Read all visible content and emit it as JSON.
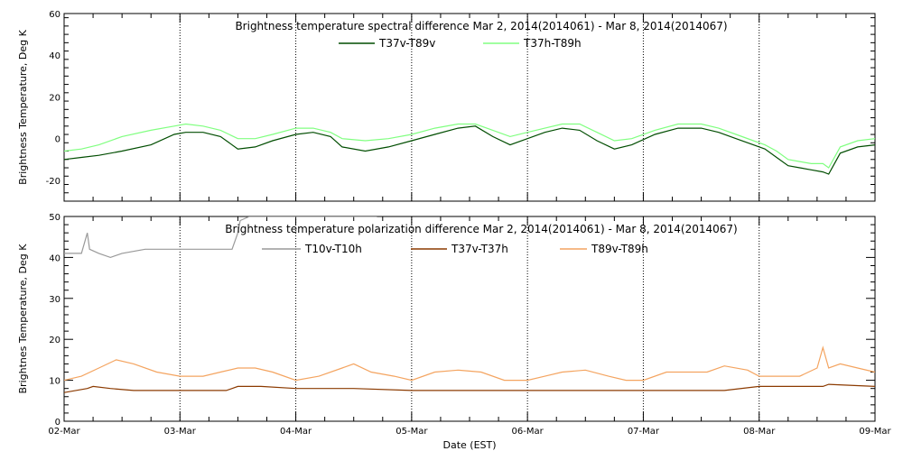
{
  "chart_data": [
    {
      "type": "line",
      "title": "Brightness temperature spectral difference     Mar  2, 2014(2014061) - Mar  8, 2014(2014067)",
      "ylabel": "Brightness Temperature, Deg K",
      "xlabel": "",
      "xlim": [
        0,
        7
      ],
      "ylim": [
        -30,
        60
      ],
      "yticks": [
        -20,
        0,
        20,
        40,
        60
      ],
      "yticklabels": [
        "-20",
        "0",
        "20",
        "40",
        "60"
      ],
      "xticks": [
        0,
        1,
        2,
        3,
        4,
        5,
        6,
        7
      ],
      "grid": "vertical dotted at day boundaries",
      "legend": "top-center",
      "series": [
        {
          "name": "T37v-T89v",
          "color": "#004d00",
          "x": [
            0,
            0.15,
            0.3,
            0.5,
            0.75,
            0.95,
            1.05,
            1.2,
            1.35,
            1.5,
            1.65,
            1.8,
            2.0,
            2.15,
            2.3,
            2.4,
            2.6,
            2.8,
            3.0,
            3.2,
            3.4,
            3.55,
            3.7,
            3.85,
            4.0,
            4.15,
            4.3,
            4.45,
            4.6,
            4.75,
            4.9,
            5.1,
            5.3,
            5.5,
            5.65,
            5.8,
            5.95,
            6.05,
            6.15,
            6.25,
            6.35,
            6.45,
            6.55,
            6.6,
            6.7,
            6.85,
            7.0
          ],
          "values": [
            -10,
            -9,
            -8,
            -6,
            -3,
            2,
            3,
            3,
            1,
            -5,
            -4,
            -1,
            2,
            3,
            1,
            -4,
            -6,
            -4,
            -1,
            2,
            5,
            6,
            1,
            -3,
            0,
            3,
            5,
            4,
            -1,
            -5,
            -3,
            2,
            5,
            5,
            3,
            0,
            -3,
            -5,
            -9,
            -13,
            -14,
            -15,
            -16,
            -17,
            -7,
            -4,
            -3
          ]
        },
        {
          "name": "T37h-T89h",
          "color": "#80ff80",
          "x": [
            0,
            0.15,
            0.3,
            0.5,
            0.75,
            0.95,
            1.05,
            1.2,
            1.35,
            1.5,
            1.65,
            1.8,
            2.0,
            2.15,
            2.3,
            2.4,
            2.6,
            2.8,
            3.0,
            3.2,
            3.4,
            3.55,
            3.7,
            3.85,
            4.0,
            4.15,
            4.3,
            4.45,
            4.6,
            4.75,
            4.9,
            5.1,
            5.3,
            5.5,
            5.65,
            5.8,
            5.95,
            6.05,
            6.15,
            6.25,
            6.35,
            6.45,
            6.55,
            6.6,
            6.7,
            6.85,
            7.0
          ],
          "values": [
            -6,
            -5,
            -3,
            1,
            4,
            6,
            7,
            6,
            4,
            0,
            0,
            2,
            5,
            5,
            3,
            0,
            -1,
            0,
            2,
            5,
            7,
            7,
            4,
            1,
            3,
            5,
            7,
            7,
            3,
            -1,
            0,
            4,
            7,
            7,
            5,
            2,
            -1,
            -3,
            -6,
            -10,
            -11,
            -12,
            -12,
            -14,
            -4,
            -1,
            0
          ]
        }
      ]
    },
    {
      "type": "line",
      "title": "Brightness temperature polarization difference     Mar  2, 2014(2014061) - Mar  8, 2014(2014067)",
      "ylabel": "Brightnes Temperature, Deg K",
      "xlabel": "Date (EST)",
      "xlim": [
        0,
        7
      ],
      "ylim": [
        0,
        50
      ],
      "yticks": [
        0,
        10,
        20,
        30,
        40,
        50
      ],
      "yticklabels": [
        "0",
        "10",
        "20",
        "30",
        "40",
        "50"
      ],
      "xticks": [
        0,
        1,
        2,
        3,
        4,
        5,
        6,
        7
      ],
      "xticklabels": [
        "02-Mar",
        "03-Mar",
        "04-Mar",
        "05-Mar",
        "06-Mar",
        "07-Mar",
        "08-Mar",
        "09-Mar"
      ],
      "grid": "vertical dotted at day boundaries",
      "legend": "top-center",
      "series": [
        {
          "name": "T10v-T10h",
          "color": "#999999",
          "x": [
            0,
            0.15,
            0.2,
            0.22,
            0.3,
            0.4,
            0.5,
            0.7,
            0.9,
            1.1,
            1.3,
            1.45,
            1.5,
            1.52,
            1.6,
            1.8,
            2.0,
            2.2,
            2.4,
            2.6,
            2.7
          ],
          "values": [
            41,
            41,
            46,
            42,
            41,
            40,
            41,
            42,
            42,
            42,
            42,
            42,
            46,
            49,
            50,
            50,
            50,
            50,
            50,
            50,
            50
          ]
        },
        {
          "name": "T37v-T37h",
          "color": "#8b3a00",
          "x": [
            0,
            0.2,
            0.25,
            0.4,
            0.6,
            0.8,
            1.0,
            1.2,
            1.4,
            1.45,
            1.5,
            1.7,
            2.0,
            2.5,
            3.0,
            3.5,
            4.0,
            4.5,
            5.0,
            5.5,
            5.7,
            6.0,
            6.3,
            6.55,
            6.6,
            7.0
          ],
          "values": [
            7,
            8,
            8.5,
            8,
            7.5,
            7.5,
            7.5,
            7.5,
            7.5,
            8,
            8.5,
            8.5,
            8,
            8,
            7.5,
            7.5,
            7.5,
            7.5,
            7.5,
            7.5,
            7.5,
            8.5,
            8.5,
            8.5,
            9,
            8.5
          ]
        },
        {
          "name": "T89v-T89h",
          "color": "#f4a460",
          "x": [
            0,
            0.15,
            0.3,
            0.45,
            0.6,
            0.8,
            1.0,
            1.2,
            1.35,
            1.5,
            1.65,
            1.8,
            2.0,
            2.2,
            2.4,
            2.5,
            2.65,
            2.85,
            3.0,
            3.2,
            3.4,
            3.6,
            3.8,
            4.0,
            4.15,
            4.3,
            4.5,
            4.7,
            4.85,
            5.0,
            5.2,
            5.4,
            5.55,
            5.7,
            5.9,
            6.0,
            6.2,
            6.35,
            6.5,
            6.55,
            6.6,
            6.7,
            6.85,
            7.0
          ],
          "values": [
            10,
            11,
            13,
            15,
            14,
            12,
            11,
            11,
            12,
            13,
            13,
            12,
            10,
            11,
            13,
            14,
            12,
            11,
            10,
            12,
            12.5,
            12,
            10,
            10,
            11,
            12,
            12.5,
            11,
            10,
            10,
            12,
            12,
            12,
            13.5,
            12.5,
            11,
            11,
            11,
            13,
            18,
            13,
            14,
            13,
            12
          ]
        }
      ]
    }
  ]
}
